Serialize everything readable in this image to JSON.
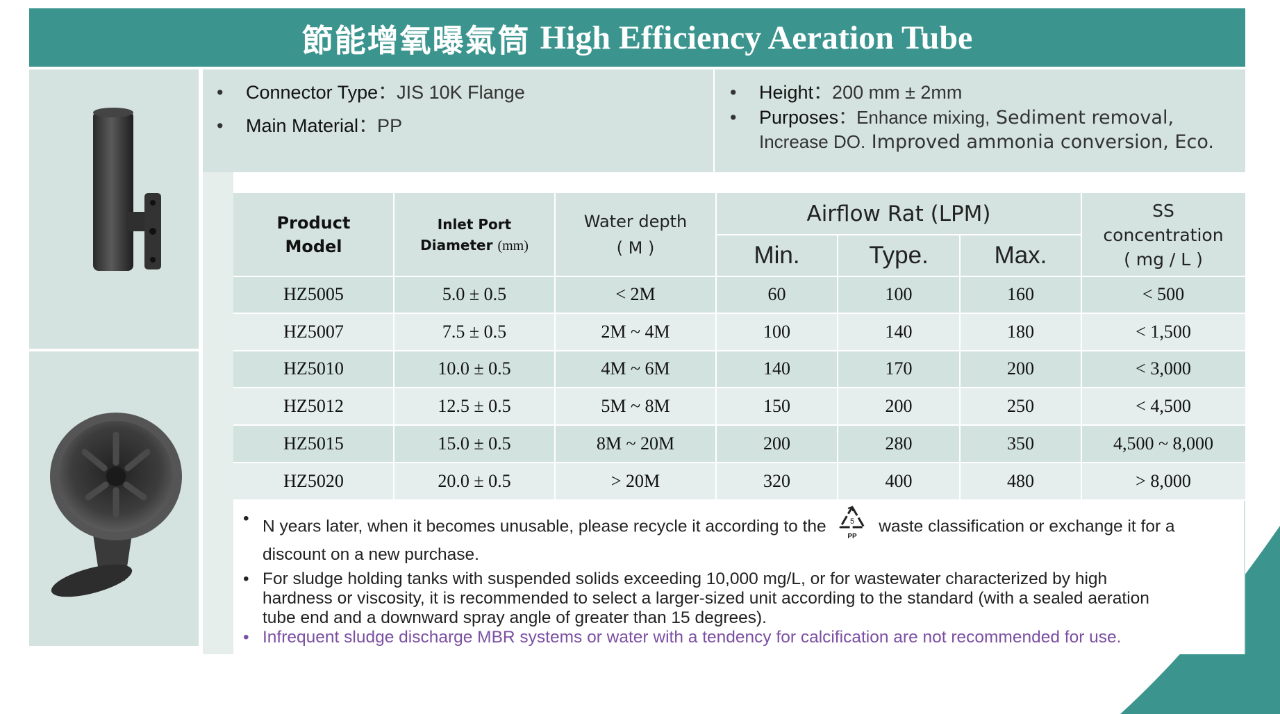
{
  "title": {
    "chinese": "節能增氧曝氣筒",
    "english": "High Efficiency Aeration Tube"
  },
  "specs": {
    "connector_key": "Connector Type",
    "connector_value": "：JIS 10K Flange",
    "material_key": "Main Material",
    "material_value": "：PP",
    "height_key": "Height",
    "height_value": "：200 mm ± 2mm",
    "purposes_key": "Purposes",
    "purposes_value_a": "：Enhance mixing,",
    "purposes_value_b": " Sediment removal,",
    "purposes_value_c": "Increase DO.",
    "purposes_value_d": " Improved ammonia conversion, Eco."
  },
  "table": {
    "headers": {
      "model_line1": "Product",
      "model_line2": "Model",
      "inlet_line1": "Inlet Port",
      "inlet_line2": "Diameter",
      "inlet_unit": "(mm)",
      "water_line1": "Water depth",
      "water_line2": "( M )",
      "airflow": "Airflow Rat (LPM)",
      "min": "Min.",
      "type": "Type.",
      "max": "Max.",
      "ss_line1": "SS",
      "ss_line2": "concentration",
      "ss_line3": "( mg / L )"
    },
    "rows": [
      {
        "model": "HZ5005",
        "inlet": "5.0 ± 0.5",
        "depth": "< 2M",
        "min": "60",
        "type": "100",
        "max": "160",
        "ss": "< 500"
      },
      {
        "model": "HZ5007",
        "inlet": "7.5 ± 0.5",
        "depth": "2M ~ 4M",
        "min": "100",
        "type": "140",
        "max": "180",
        "ss": "< 1,500"
      },
      {
        "model": "HZ5010",
        "inlet": "10.0 ± 0.5",
        "depth": "4M ~ 6M",
        "min": "140",
        "type": "170",
        "max": "200",
        "ss": "< 3,000"
      },
      {
        "model": "HZ5012",
        "inlet": "12.5 ± 0.5",
        "depth": "5M ~ 8M",
        "min": "150",
        "type": "200",
        "max": "250",
        "ss": "< 4,500"
      },
      {
        "model": "HZ5015",
        "inlet": "15.0 ± 0.5",
        "depth": "8M ~ 20M",
        "min": "200",
        "type": "280",
        "max": "350",
        "ss": "4,500 ~ 8,000"
      },
      {
        "model": "HZ5020",
        "inlet": "20.0 ± 0.5",
        "depth": "> 20M",
        "min": "320",
        "type": "400",
        "max": "480",
        "ss": "> 8,000"
      }
    ]
  },
  "notes": {
    "note1_a": "N years later, when it becomes unusable, please recycle it according to the",
    "note1_b": "waste classification or exchange it for a",
    "note1_c": "discount on a new purchase.",
    "recycle_number": "5",
    "recycle_label": "PP",
    "note2_a": "For sludge holding tanks with suspended solids exceeding 10,000 mg/L, or for wastewater characterized by high",
    "note2_b": "hardness or viscosity, it is recommended to select a larger-sized unit according to the standard (with a sealed aeration",
    "note2_c": "tube end and a downward spray angle of greater than 15 degrees).",
    "note3": "Infrequent sludge discharge MBR systems or water with a tendency for calcification are not recommended for use."
  },
  "colors": {
    "title_bg": "#3b958e",
    "panel_bg": "#d4e3df",
    "purple_note": "#7b4fa2"
  },
  "icons": [
    "recycle-pp-icon",
    "product-photo-side",
    "product-photo-top"
  ]
}
